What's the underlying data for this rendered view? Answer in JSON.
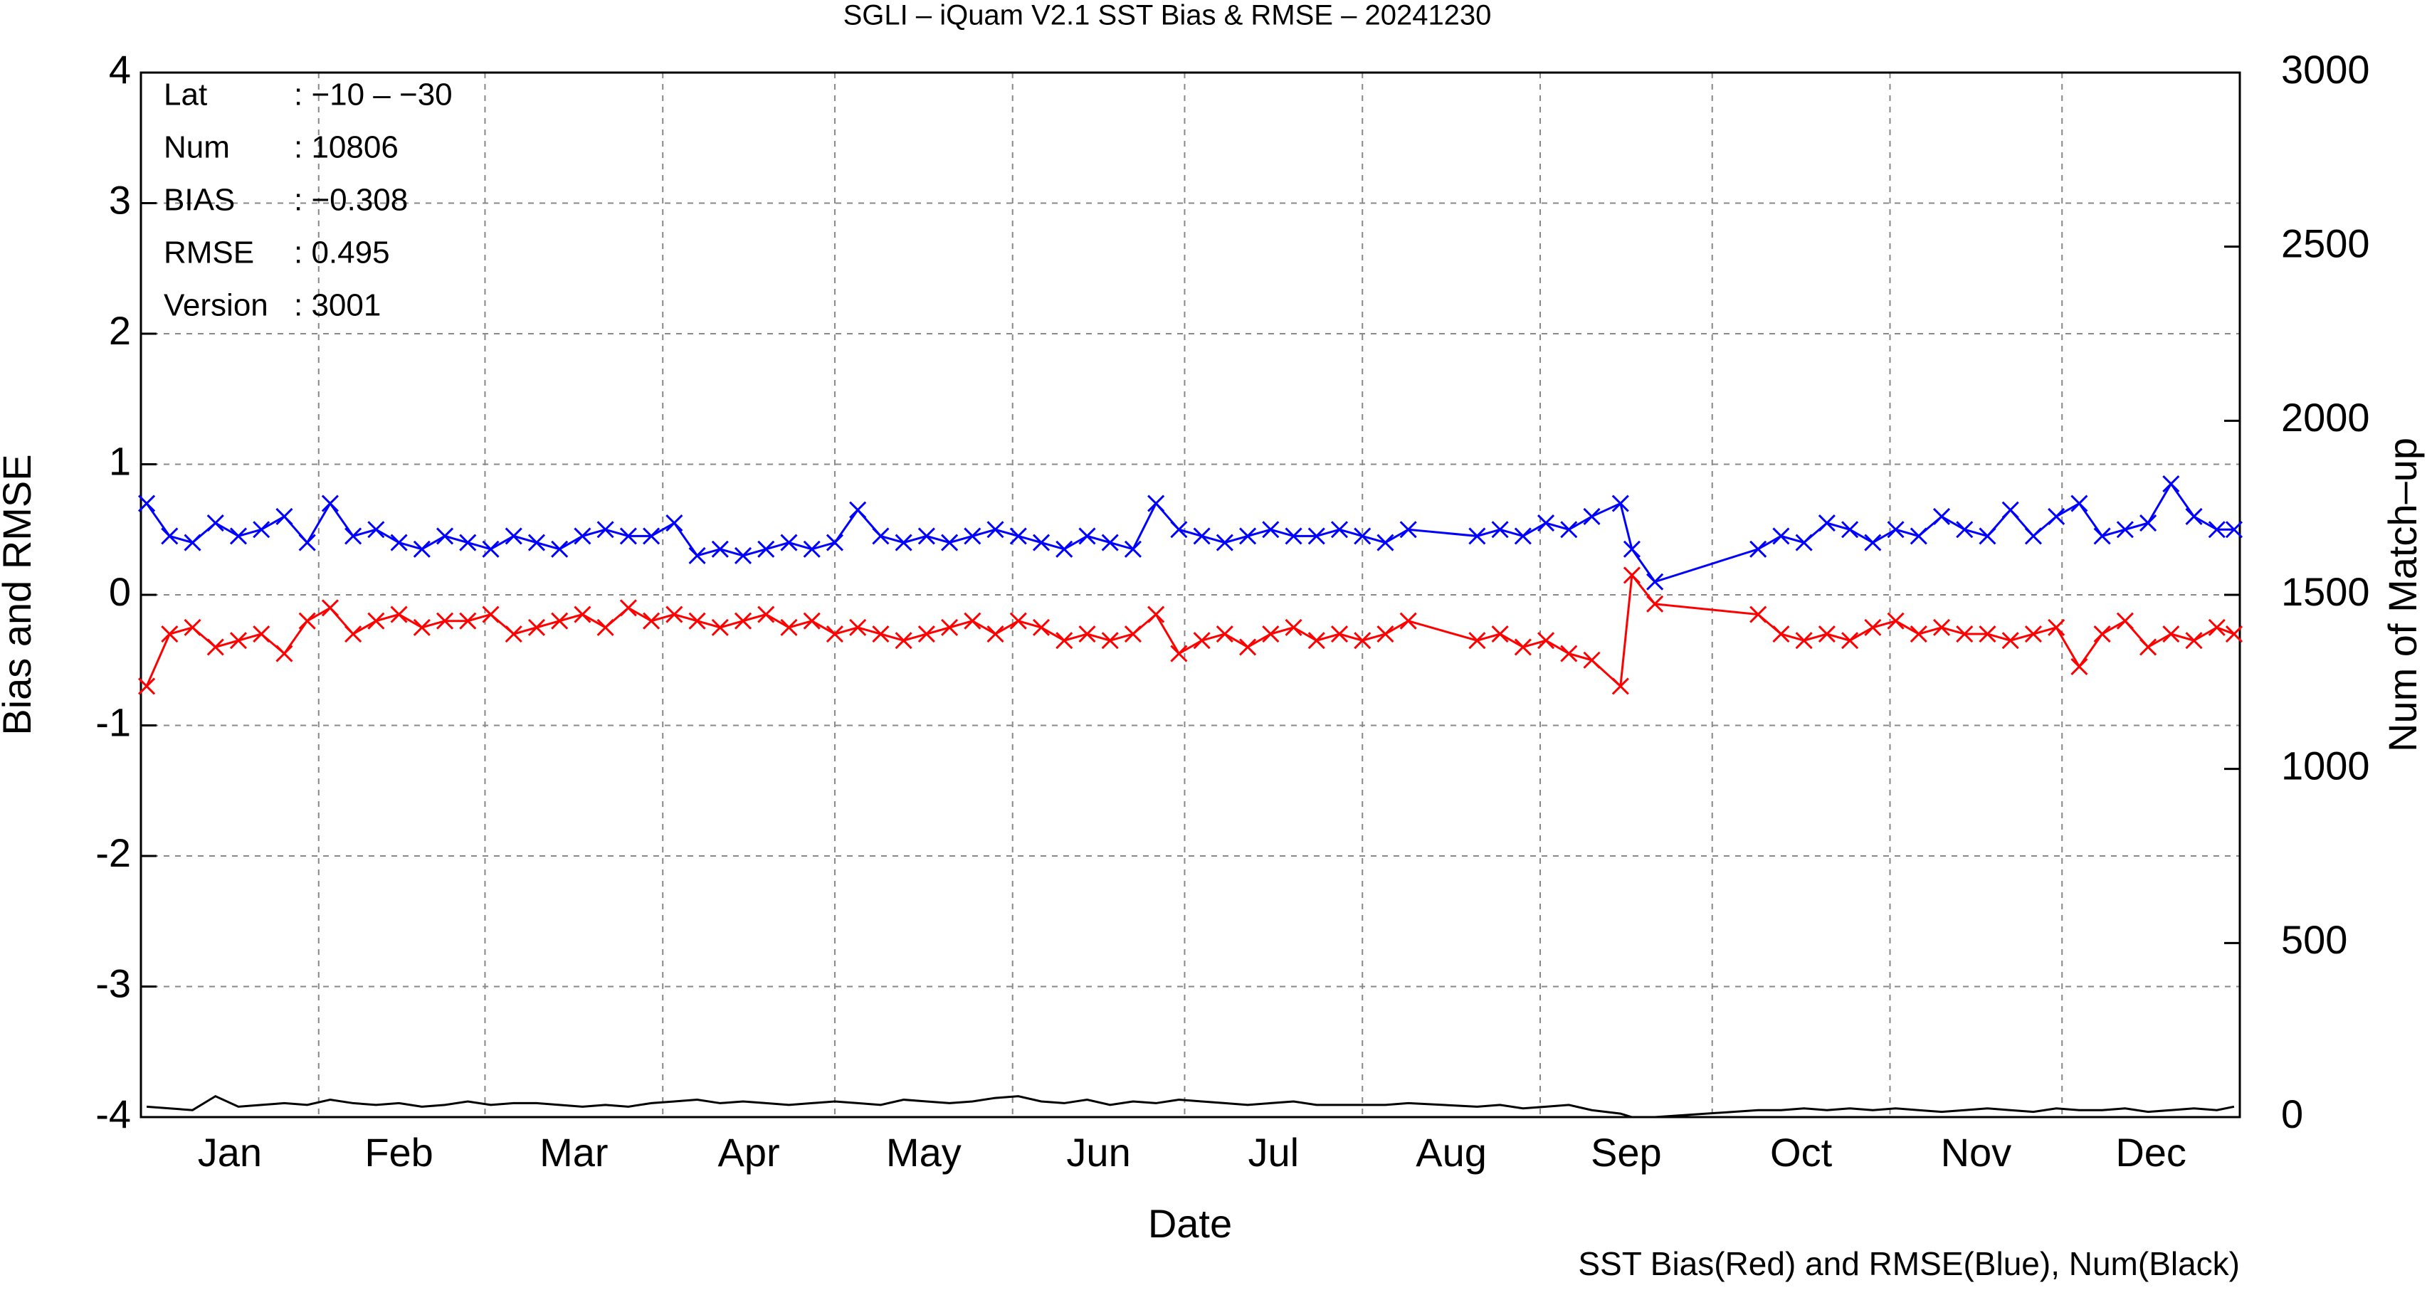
{
  "chart_data": {
    "type": "line",
    "title": "SGLI – iQuam V2.1 SST Bias & RMSE  – 20241230",
    "x_label": "Date",
    "y_label": "Bias and RMSE",
    "y2_label": "Num of Match–up",
    "footer": "SST Bias(Red) and RMSE(Blue), Num(Black)",
    "annotations": [
      {
        "label": "Lat",
        "value": ": −10 – −30"
      },
      {
        "label": "Num",
        "value": ": 10806"
      },
      {
        "label": "BIAS",
        "value": ": −0.308"
      },
      {
        "label": "RMSE",
        "value": ": 0.495"
      },
      {
        "label": "Version",
        "value": ": 3001"
      }
    ],
    "xlim": [
      0,
      366
    ],
    "xticks": [
      {
        "value": 15.5,
        "label": "Jan"
      },
      {
        "value": 45,
        "label": "Feb"
      },
      {
        "value": 75.5,
        "label": "Mar"
      },
      {
        "value": 106,
        "label": "Apr"
      },
      {
        "value": 136.5,
        "label": "May"
      },
      {
        "value": 167,
        "label": "Jun"
      },
      {
        "value": 197.5,
        "label": "Jul"
      },
      {
        "value": 228.5,
        "label": "Aug"
      },
      {
        "value": 259,
        "label": "Sep"
      },
      {
        "value": 289.5,
        "label": "Oct"
      },
      {
        "value": 320,
        "label": "Nov"
      },
      {
        "value": 350.5,
        "label": "Dec"
      }
    ],
    "x_grid": [
      31,
      60,
      91,
      121,
      152,
      182,
      213,
      244,
      274,
      305,
      335
    ],
    "ylim": [
      -4,
      4
    ],
    "yticks": [
      -4,
      -3,
      -2,
      -1,
      0,
      1,
      2,
      3,
      4
    ],
    "y2lim": [
      0,
      3000
    ],
    "y2ticks": [
      0,
      500,
      1000,
      1500,
      2000,
      2500,
      3000
    ],
    "grid": true,
    "x": [
      1,
      5,
      9,
      13,
      17,
      21,
      25,
      29,
      33,
      37,
      41,
      45,
      49,
      53,
      57,
      61,
      65,
      69,
      73,
      77,
      81,
      85,
      89,
      93,
      97,
      101,
      105,
      109,
      113,
      117,
      121,
      125,
      129,
      133,
      137,
      141,
      145,
      149,
      153,
      157,
      161,
      165,
      169,
      173,
      177,
      181,
      185,
      189,
      193,
      197,
      201,
      205,
      209,
      213,
      217,
      221,
      233,
      237,
      241,
      245,
      249,
      253,
      258,
      260,
      264,
      282,
      286,
      290,
      294,
      298,
      302,
      306,
      310,
      314,
      318,
      322,
      326,
      330,
      334,
      338,
      342,
      346,
      350,
      354,
      358,
      362,
      365
    ],
    "series": [
      {
        "name": "SST Bias",
        "color": "#ff0000",
        "marker": "x",
        "values": [
          -0.7,
          -0.3,
          -0.25,
          -0.4,
          -0.35,
          -0.3,
          -0.45,
          -0.2,
          -0.1,
          -0.3,
          -0.2,
          -0.15,
          -0.25,
          -0.2,
          -0.2,
          -0.15,
          -0.3,
          -0.25,
          -0.2,
          -0.15,
          -0.25,
          -0.1,
          -0.2,
          -0.15,
          -0.2,
          -0.25,
          -0.2,
          -0.15,
          -0.25,
          -0.2,
          -0.3,
          -0.25,
          -0.3,
          -0.35,
          -0.3,
          -0.25,
          -0.2,
          -0.3,
          -0.2,
          -0.25,
          -0.35,
          -0.3,
          -0.35,
          -0.3,
          -0.15,
          -0.45,
          -0.35,
          -0.3,
          -0.4,
          -0.3,
          -0.25,
          -0.35,
          -0.3,
          -0.35,
          -0.3,
          -0.2,
          -0.35,
          -0.3,
          -0.4,
          -0.35,
          -0.45,
          -0.5,
          -0.7,
          0.15,
          -0.07,
          -0.15,
          -0.3,
          -0.35,
          -0.3,
          -0.35,
          -0.25,
          -0.2,
          -0.3,
          -0.25,
          -0.3,
          -0.3,
          -0.35,
          -0.3,
          -0.25,
          -0.55,
          -0.3,
          -0.2,
          -0.4,
          -0.3,
          -0.35,
          -0.25,
          -0.3
        ]
      },
      {
        "name": "RMSE",
        "color": "#0000ff",
        "marker": "x",
        "values": [
          0.7,
          0.45,
          0.4,
          0.55,
          0.45,
          0.5,
          0.6,
          0.4,
          0.7,
          0.45,
          0.5,
          0.4,
          0.35,
          0.45,
          0.4,
          0.35,
          0.45,
          0.4,
          0.35,
          0.45,
          0.5,
          0.45,
          0.45,
          0.55,
          0.3,
          0.35,
          0.3,
          0.35,
          0.4,
          0.35,
          0.4,
          0.65,
          0.45,
          0.4,
          0.45,
          0.4,
          0.45,
          0.5,
          0.45,
          0.4,
          0.35,
          0.45,
          0.4,
          0.35,
          0.7,
          0.5,
          0.45,
          0.4,
          0.45,
          0.5,
          0.45,
          0.45,
          0.5,
          0.45,
          0.4,
          0.5,
          0.45,
          0.5,
          0.45,
          0.55,
          0.5,
          0.6,
          0.7,
          0.35,
          0.1,
          0.35,
          0.45,
          0.4,
          0.55,
          0.5,
          0.4,
          0.5,
          0.45,
          0.6,
          0.5,
          0.45,
          0.65,
          0.45,
          0.6,
          0.7,
          0.45,
          0.5,
          0.55,
          0.85,
          0.6,
          0.5,
          0.5
        ]
      },
      {
        "name": "Num",
        "color": "#000000",
        "axis": "y2",
        "values": [
          30,
          25,
          20,
          60,
          30,
          35,
          40,
          35,
          50,
          40,
          35,
          40,
          30,
          35,
          45,
          35,
          40,
          40,
          35,
          30,
          35,
          30,
          40,
          45,
          50,
          40,
          45,
          40,
          35,
          40,
          45,
          40,
          35,
          50,
          45,
          40,
          45,
          55,
          60,
          45,
          40,
          50,
          35,
          45,
          40,
          50,
          45,
          40,
          35,
          40,
          45,
          35,
          35,
          35,
          35,
          40,
          30,
          35,
          25,
          30,
          35,
          20,
          10,
          0,
          0,
          20,
          20,
          25,
          20,
          25,
          20,
          25,
          20,
          15,
          20,
          25,
          20,
          15,
          25,
          20,
          20,
          25,
          15,
          20,
          25,
          20,
          30
        ]
      }
    ]
  }
}
